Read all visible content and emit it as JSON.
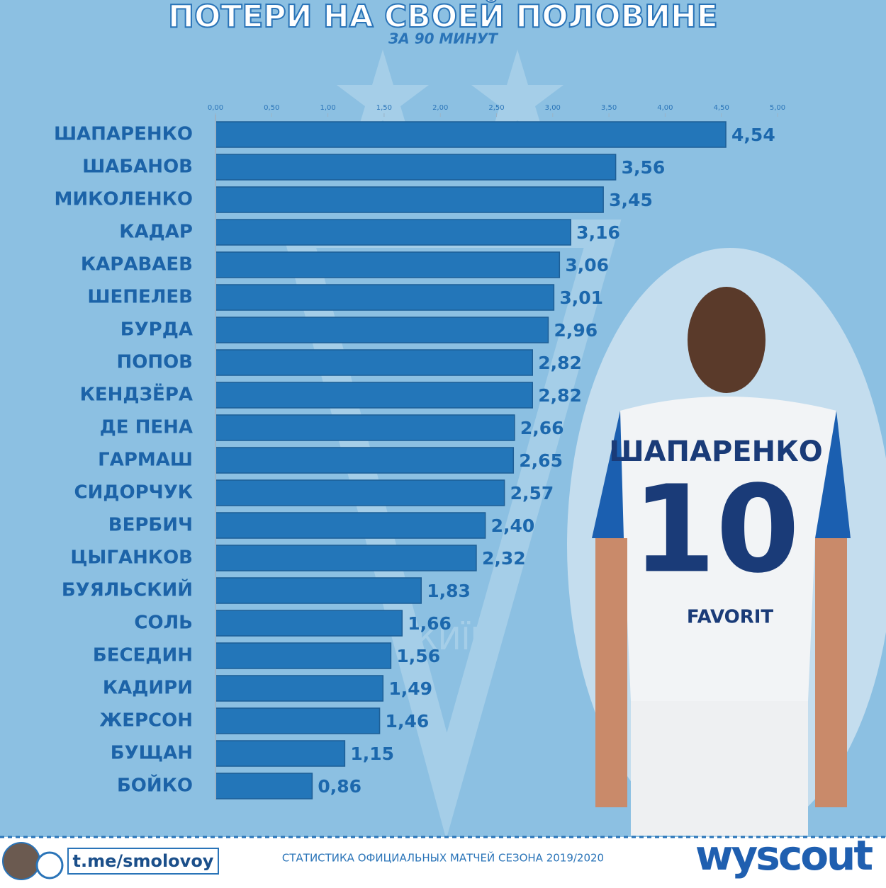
{
  "chart_data": {
    "type": "hbar",
    "title": "ПОТЕРИ НА СВОЕЙ ПОЛОВИНЕ",
    "subtitle": "ЗА 90 МИНУТ",
    "categories": [
      "ШАПАРЕНКО",
      "ШАБАНОВ",
      "МИКОЛЕНКО",
      "КАДАР",
      "КАРАВАЕВ",
      "ШЕПЕЛЕВ",
      "БУРДА",
      "ПОПОВ",
      "КЕНДЗЁРА",
      "ДЕ ПЕНА",
      "ГАРМАШ",
      "СИДОРЧУК",
      "ВЕРБИЧ",
      "ЦЫГАНКОВ",
      "БУЯЛЬСКИЙ",
      "СОЛЬ",
      "БЕСЕДИН",
      "КАДИРИ",
      "ЖЕРСОН",
      "БУЩАН",
      "БОЙКО"
    ],
    "values": [
      4.54,
      3.56,
      3.45,
      3.16,
      3.06,
      3.01,
      2.96,
      2.82,
      2.82,
      2.66,
      2.65,
      2.57,
      2.4,
      2.32,
      1.83,
      1.66,
      1.56,
      1.49,
      1.46,
      1.15,
      0.86
    ],
    "value_labels": [
      "4,54",
      "3,56",
      "3,45",
      "3,16",
      "3,06",
      "3,01",
      "2,96",
      "2,82",
      "2,82",
      "2,66",
      "2,65",
      "2,57",
      "2,40",
      "2,32",
      "1,83",
      "1,66",
      "1,56",
      "1,49",
      "1,46",
      "1,15",
      "0,86"
    ],
    "color": "#2376b9",
    "xlim": [
      0,
      5
    ],
    "xticks": [
      {
        "value": 0,
        "label": "0,00"
      },
      {
        "value": 0.5,
        "label": "0,50"
      },
      {
        "value": 1,
        "label": "1,00"
      },
      {
        "value": 1.5,
        "label": "1,50"
      },
      {
        "value": 2,
        "label": "2,00"
      },
      {
        "value": 2.5,
        "label": "2,50"
      },
      {
        "value": 3,
        "label": "3,00"
      },
      {
        "value": 3.5,
        "label": "3,50"
      },
      {
        "value": 4,
        "label": "4,00"
      },
      {
        "value": 4.5,
        "label": "4,50"
      },
      {
        "value": 5,
        "label": "5,00"
      }
    ]
  },
  "photo": {
    "jersey_name": "ШАПАРЕНКО",
    "jersey_number": "10",
    "sponsor": "FAVORIT",
    "logo_text": "КИЇВ"
  },
  "footer": {
    "channel": "t.me/smolovoy",
    "note": "СТАТИСТИКА ОФИЦИАЛЬНЫХ МАТЧЕЙ СЕЗОНА 2019/2020",
    "brand": "wyscout"
  }
}
